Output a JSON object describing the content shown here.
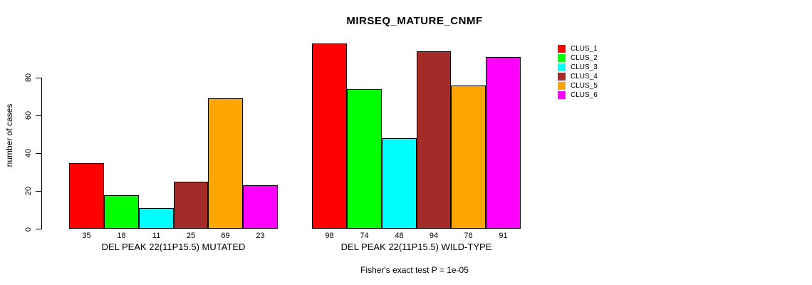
{
  "chart_data": {
    "type": "bar",
    "title": "MIRSEQ_MATURE_CNMF",
    "ylabel": "number of cases",
    "xlabel": "",
    "annotation": "Fisher's exact test P = 1e-05",
    "ylim": [
      0,
      100
    ],
    "yticks": [
      0,
      20,
      40,
      60,
      80
    ],
    "grid": false,
    "legend_position": "top-right",
    "bar_value_labels": true,
    "background_color": "#FFFFFF",
    "categories": [
      "DEL PEAK 22(11P15.5) MUTATED",
      "DEL PEAK 22(11P15.5) WILD-TYPE"
    ],
    "series": [
      {
        "name": "CLUS_1",
        "color": "#FF0000",
        "values": [
          35,
          98
        ]
      },
      {
        "name": "CLUS_2",
        "color": "#00FF00",
        "values": [
          18,
          74
        ]
      },
      {
        "name": "CLUS_3",
        "color": "#00FFFF",
        "values": [
          11,
          48
        ]
      },
      {
        "name": "CLUS_4",
        "color": "#A52A2A",
        "values": [
          25,
          94
        ]
      },
      {
        "name": "CLUS_5",
        "color": "#FFA500",
        "values": [
          69,
          76
        ]
      },
      {
        "name": "CLUS_6",
        "color": "#FF00FF",
        "values": [
          23,
          91
        ]
      }
    ]
  }
}
